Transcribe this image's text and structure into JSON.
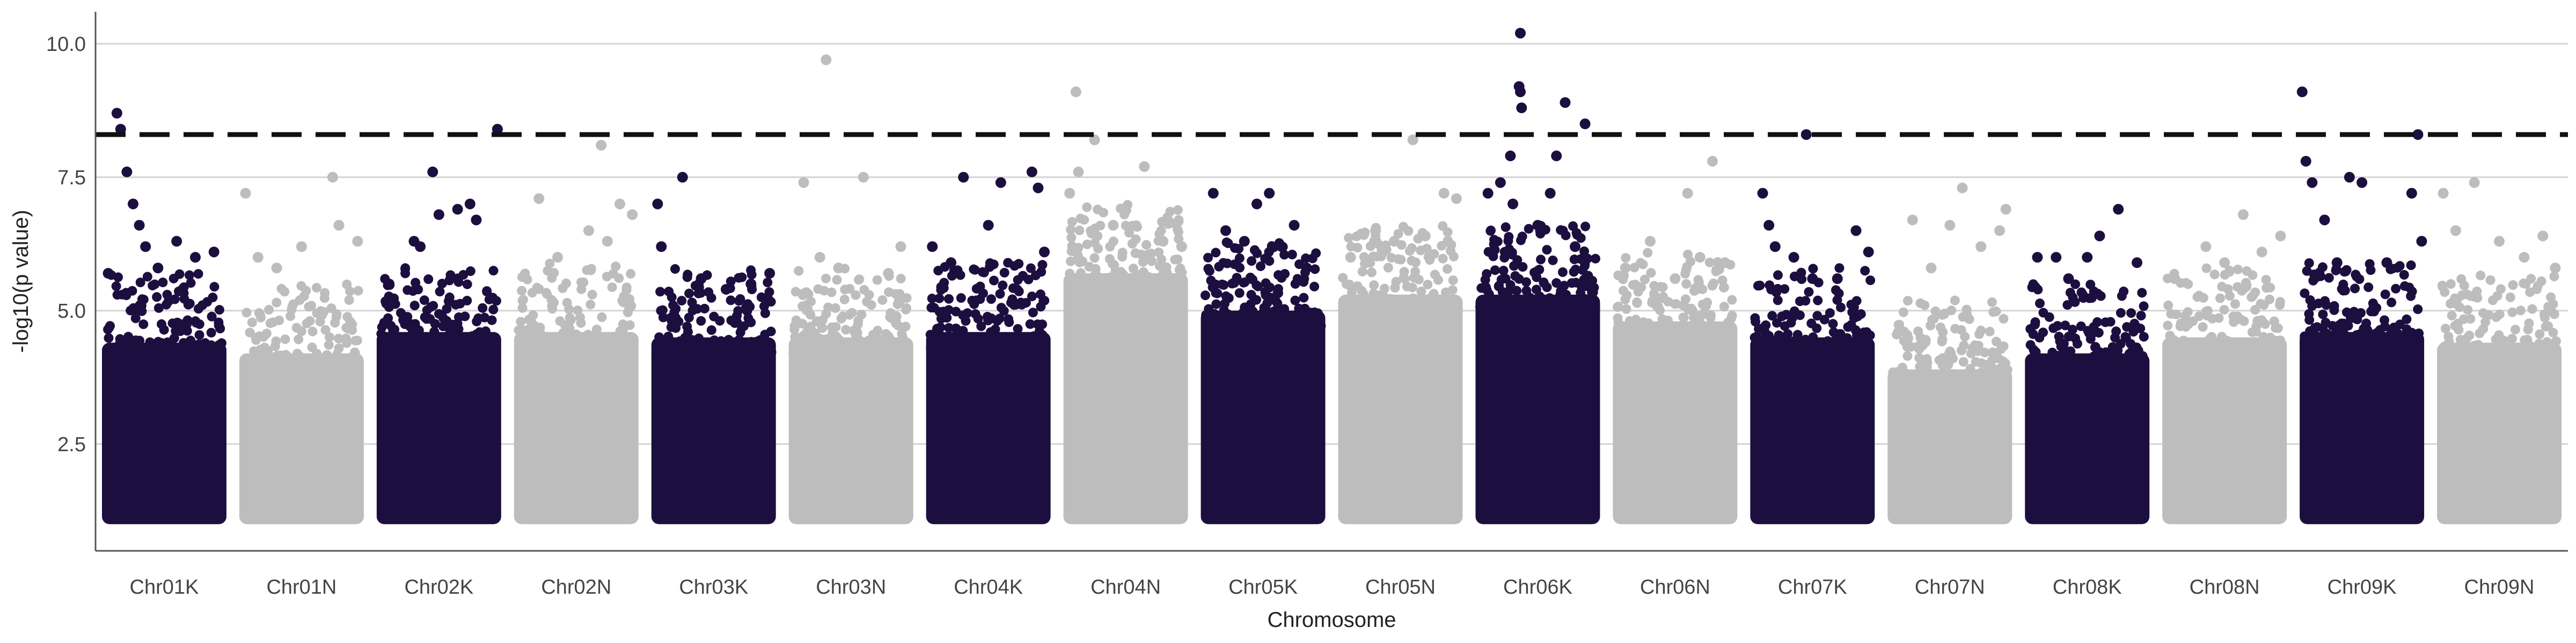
{
  "chart_data": {
    "type": "scatter",
    "title": "",
    "xlabel": "Chromosome",
    "ylabel": "-log10(p value)",
    "ylim": [
      0.5,
      10.6
    ],
    "y_ticks": [
      2.5,
      5.0,
      7.5,
      10.0
    ],
    "y_tick_labels": [
      "2.5",
      "5.0",
      "7.5",
      "10.0"
    ],
    "grid": "horizontal",
    "legend": "none",
    "threshold": {
      "value": 8.3,
      "style": "dashed",
      "color": "#111111"
    },
    "colors": {
      "odd": "#1c0f3f",
      "even": "#bdbdbd",
      "grid": "#d4d4d4",
      "axis": "#555555"
    },
    "categories": [
      "Chr01K",
      "Chr01N",
      "Chr02K",
      "Chr02N",
      "Chr03K",
      "Chr03N",
      "Chr04K",
      "Chr04N",
      "Chr05K",
      "Chr05N",
      "Chr06K",
      "Chr06N",
      "Chr07K",
      "Chr07N",
      "Chr08K",
      "Chr08N",
      "Chr09K",
      "Chr09N"
    ],
    "series": [
      {
        "category": "Chr01K",
        "color": "#1c0f3f",
        "body_top": 4.4,
        "peaks": [
          [
            0.12,
            8.7
          ],
          [
            0.15,
            8.4
          ],
          [
            0.2,
            7.6
          ],
          [
            0.25,
            7.0
          ],
          [
            0.3,
            6.6
          ],
          [
            0.45,
            5.8
          ],
          [
            0.6,
            6.3
          ],
          [
            0.75,
            6.0
          ],
          [
            0.9,
            6.1
          ],
          [
            0.05,
            5.7
          ],
          [
            0.35,
            6.2
          ]
        ]
      },
      {
        "category": "Chr01N",
        "color": "#bdbdbd",
        "body_top": 4.2,
        "peaks": [
          [
            0.05,
            7.2
          ],
          [
            0.15,
            6.0
          ],
          [
            0.3,
            5.8
          ],
          [
            0.5,
            6.2
          ],
          [
            0.75,
            7.5
          ],
          [
            0.8,
            6.6
          ],
          [
            0.95,
            6.3
          ]
        ]
      },
      {
        "category": "Chr02K",
        "color": "#1c0f3f",
        "body_top": 4.6,
        "peaks": [
          [
            0.1,
            5.5
          ],
          [
            0.3,
            6.3
          ],
          [
            0.45,
            7.6
          ],
          [
            0.5,
            6.8
          ],
          [
            0.65,
            6.9
          ],
          [
            0.75,
            7.0
          ],
          [
            0.8,
            6.7
          ],
          [
            0.97,
            8.4
          ],
          [
            0.35,
            6.2
          ]
        ]
      },
      {
        "category": "Chr02N",
        "color": "#bdbdbd",
        "body_top": 4.6,
        "peaks": [
          [
            0.2,
            7.1
          ],
          [
            0.35,
            6.0
          ],
          [
            0.6,
            6.5
          ],
          [
            0.7,
            8.1
          ],
          [
            0.75,
            6.3
          ],
          [
            0.85,
            7.0
          ],
          [
            0.95,
            6.8
          ]
        ]
      },
      {
        "category": "Chr03K",
        "color": "#1c0f3f",
        "body_top": 4.5,
        "peaks": [
          [
            0.05,
            7.0
          ],
          [
            0.08,
            6.2
          ],
          [
            0.25,
            7.5
          ],
          [
            0.4,
            5.6
          ],
          [
            0.6,
            5.4
          ],
          [
            0.8,
            5.5
          ],
          [
            0.95,
            5.7
          ]
        ]
      },
      {
        "category": "Chr03N",
        "color": "#bdbdbd",
        "body_top": 4.5,
        "peaks": [
          [
            0.12,
            7.4
          ],
          [
            0.25,
            6.0
          ],
          [
            0.3,
            9.7
          ],
          [
            0.4,
            5.8
          ],
          [
            0.6,
            7.5
          ],
          [
            0.8,
            5.7
          ],
          [
            0.9,
            6.2
          ]
        ]
      },
      {
        "category": "Chr04K",
        "color": "#1c0f3f",
        "body_top": 4.6,
        "peaks": [
          [
            0.05,
            6.2
          ],
          [
            0.3,
            7.5
          ],
          [
            0.5,
            6.6
          ],
          [
            0.6,
            7.4
          ],
          [
            0.85,
            7.6
          ],
          [
            0.9,
            7.3
          ],
          [
            0.95,
            6.1
          ],
          [
            0.2,
            5.9
          ]
        ]
      },
      {
        "category": "Chr04N",
        "color": "#bdbdbd",
        "body_top": 5.7,
        "peaks": [
          [
            0.05,
            7.2
          ],
          [
            0.1,
            9.1
          ],
          [
            0.12,
            7.6
          ],
          [
            0.25,
            8.2
          ],
          [
            0.4,
            6.6
          ],
          [
            0.65,
            7.7
          ],
          [
            0.8,
            6.3
          ],
          [
            0.95,
            6.2
          ]
        ]
      },
      {
        "category": "Chr05K",
        "color": "#1c0f3f",
        "body_top": 5.0,
        "peaks": [
          [
            0.1,
            7.2
          ],
          [
            0.2,
            6.5
          ],
          [
            0.35,
            6.3
          ],
          [
            0.45,
            7.0
          ],
          [
            0.55,
            7.2
          ],
          [
            0.65,
            6.2
          ],
          [
            0.75,
            6.6
          ],
          [
            0.85,
            5.8
          ]
        ]
      },
      {
        "category": "Chr05N",
        "color": "#bdbdbd",
        "body_top": 5.3,
        "peaks": [
          [
            0.1,
            6.0
          ],
          [
            0.3,
            6.5
          ],
          [
            0.45,
            6.3
          ],
          [
            0.6,
            8.2
          ],
          [
            0.7,
            6.4
          ],
          [
            0.85,
            7.2
          ],
          [
            0.95,
            7.1
          ]
        ]
      },
      {
        "category": "Chr06K",
        "color": "#1c0f3f",
        "body_top": 5.3,
        "peaks": [
          [
            0.1,
            7.2
          ],
          [
            0.2,
            7.4
          ],
          [
            0.28,
            7.9
          ],
          [
            0.3,
            7.0
          ],
          [
            0.35,
            9.2
          ],
          [
            0.36,
            9.1
          ],
          [
            0.37,
            8.8
          ],
          [
            0.36,
            10.2
          ],
          [
            0.5,
            6.6
          ],
          [
            0.6,
            7.2
          ],
          [
            0.65,
            7.9
          ],
          [
            0.72,
            8.9
          ],
          [
            0.88,
            8.5
          ],
          [
            0.8,
            6.2
          ]
        ]
      },
      {
        "category": "Chr06N",
        "color": "#bdbdbd",
        "body_top": 4.8,
        "peaks": [
          [
            0.1,
            5.8
          ],
          [
            0.3,
            6.3
          ],
          [
            0.5,
            5.6
          ],
          [
            0.6,
            7.2
          ],
          [
            0.7,
            6.0
          ],
          [
            0.8,
            7.8
          ],
          [
            0.9,
            5.9
          ]
        ]
      },
      {
        "category": "Chr07K",
        "color": "#1c0f3f",
        "body_top": 4.5,
        "peaks": [
          [
            0.1,
            7.2
          ],
          [
            0.15,
            6.6
          ],
          [
            0.2,
            6.2
          ],
          [
            0.35,
            6.0
          ],
          [
            0.45,
            8.3
          ],
          [
            0.5,
            5.6
          ],
          [
            0.7,
            5.6
          ],
          [
            0.85,
            6.5
          ],
          [
            0.95,
            6.1
          ]
        ]
      },
      {
        "category": "Chr07N",
        "color": "#bdbdbd",
        "body_top": 3.9,
        "peaks": [
          [
            0.2,
            6.7
          ],
          [
            0.35,
            5.8
          ],
          [
            0.5,
            6.6
          ],
          [
            0.6,
            7.3
          ],
          [
            0.75,
            6.2
          ],
          [
            0.9,
            6.5
          ],
          [
            0.95,
            6.9
          ]
        ]
      },
      {
        "category": "Chr08K",
        "color": "#1c0f3f",
        "body_top": 4.2,
        "peaks": [
          [
            0.1,
            6.0
          ],
          [
            0.25,
            6.0
          ],
          [
            0.35,
            5.6
          ],
          [
            0.5,
            6.0
          ],
          [
            0.6,
            6.4
          ],
          [
            0.75,
            6.9
          ],
          [
            0.9,
            5.9
          ]
        ]
      },
      {
        "category": "Chr08N",
        "color": "#bdbdbd",
        "body_top": 4.5,
        "peaks": [
          [
            0.1,
            5.6
          ],
          [
            0.35,
            6.2
          ],
          [
            0.5,
            5.9
          ],
          [
            0.65,
            6.8
          ],
          [
            0.8,
            6.1
          ],
          [
            0.95,
            6.4
          ]
        ]
      },
      {
        "category": "Chr09K",
        "color": "#1c0f3f",
        "body_top": 4.6,
        "peaks": [
          [
            0.02,
            9.1
          ],
          [
            0.05,
            7.8
          ],
          [
            0.1,
            7.4
          ],
          [
            0.2,
            6.7
          ],
          [
            0.3,
            5.9
          ],
          [
            0.4,
            7.5
          ],
          [
            0.5,
            7.4
          ],
          [
            0.7,
            5.9
          ],
          [
            0.9,
            7.2
          ],
          [
            0.95,
            8.3
          ],
          [
            0.98,
            6.3
          ]
        ]
      },
      {
        "category": "Chr09N",
        "color": "#bdbdbd",
        "body_top": 4.4,
        "peaks": [
          [
            0.05,
            7.2
          ],
          [
            0.15,
            6.5
          ],
          [
            0.3,
            7.4
          ],
          [
            0.5,
            6.3
          ],
          [
            0.7,
            6.0
          ],
          [
            0.85,
            6.4
          ],
          [
            0.95,
            5.8
          ]
        ]
      }
    ]
  }
}
